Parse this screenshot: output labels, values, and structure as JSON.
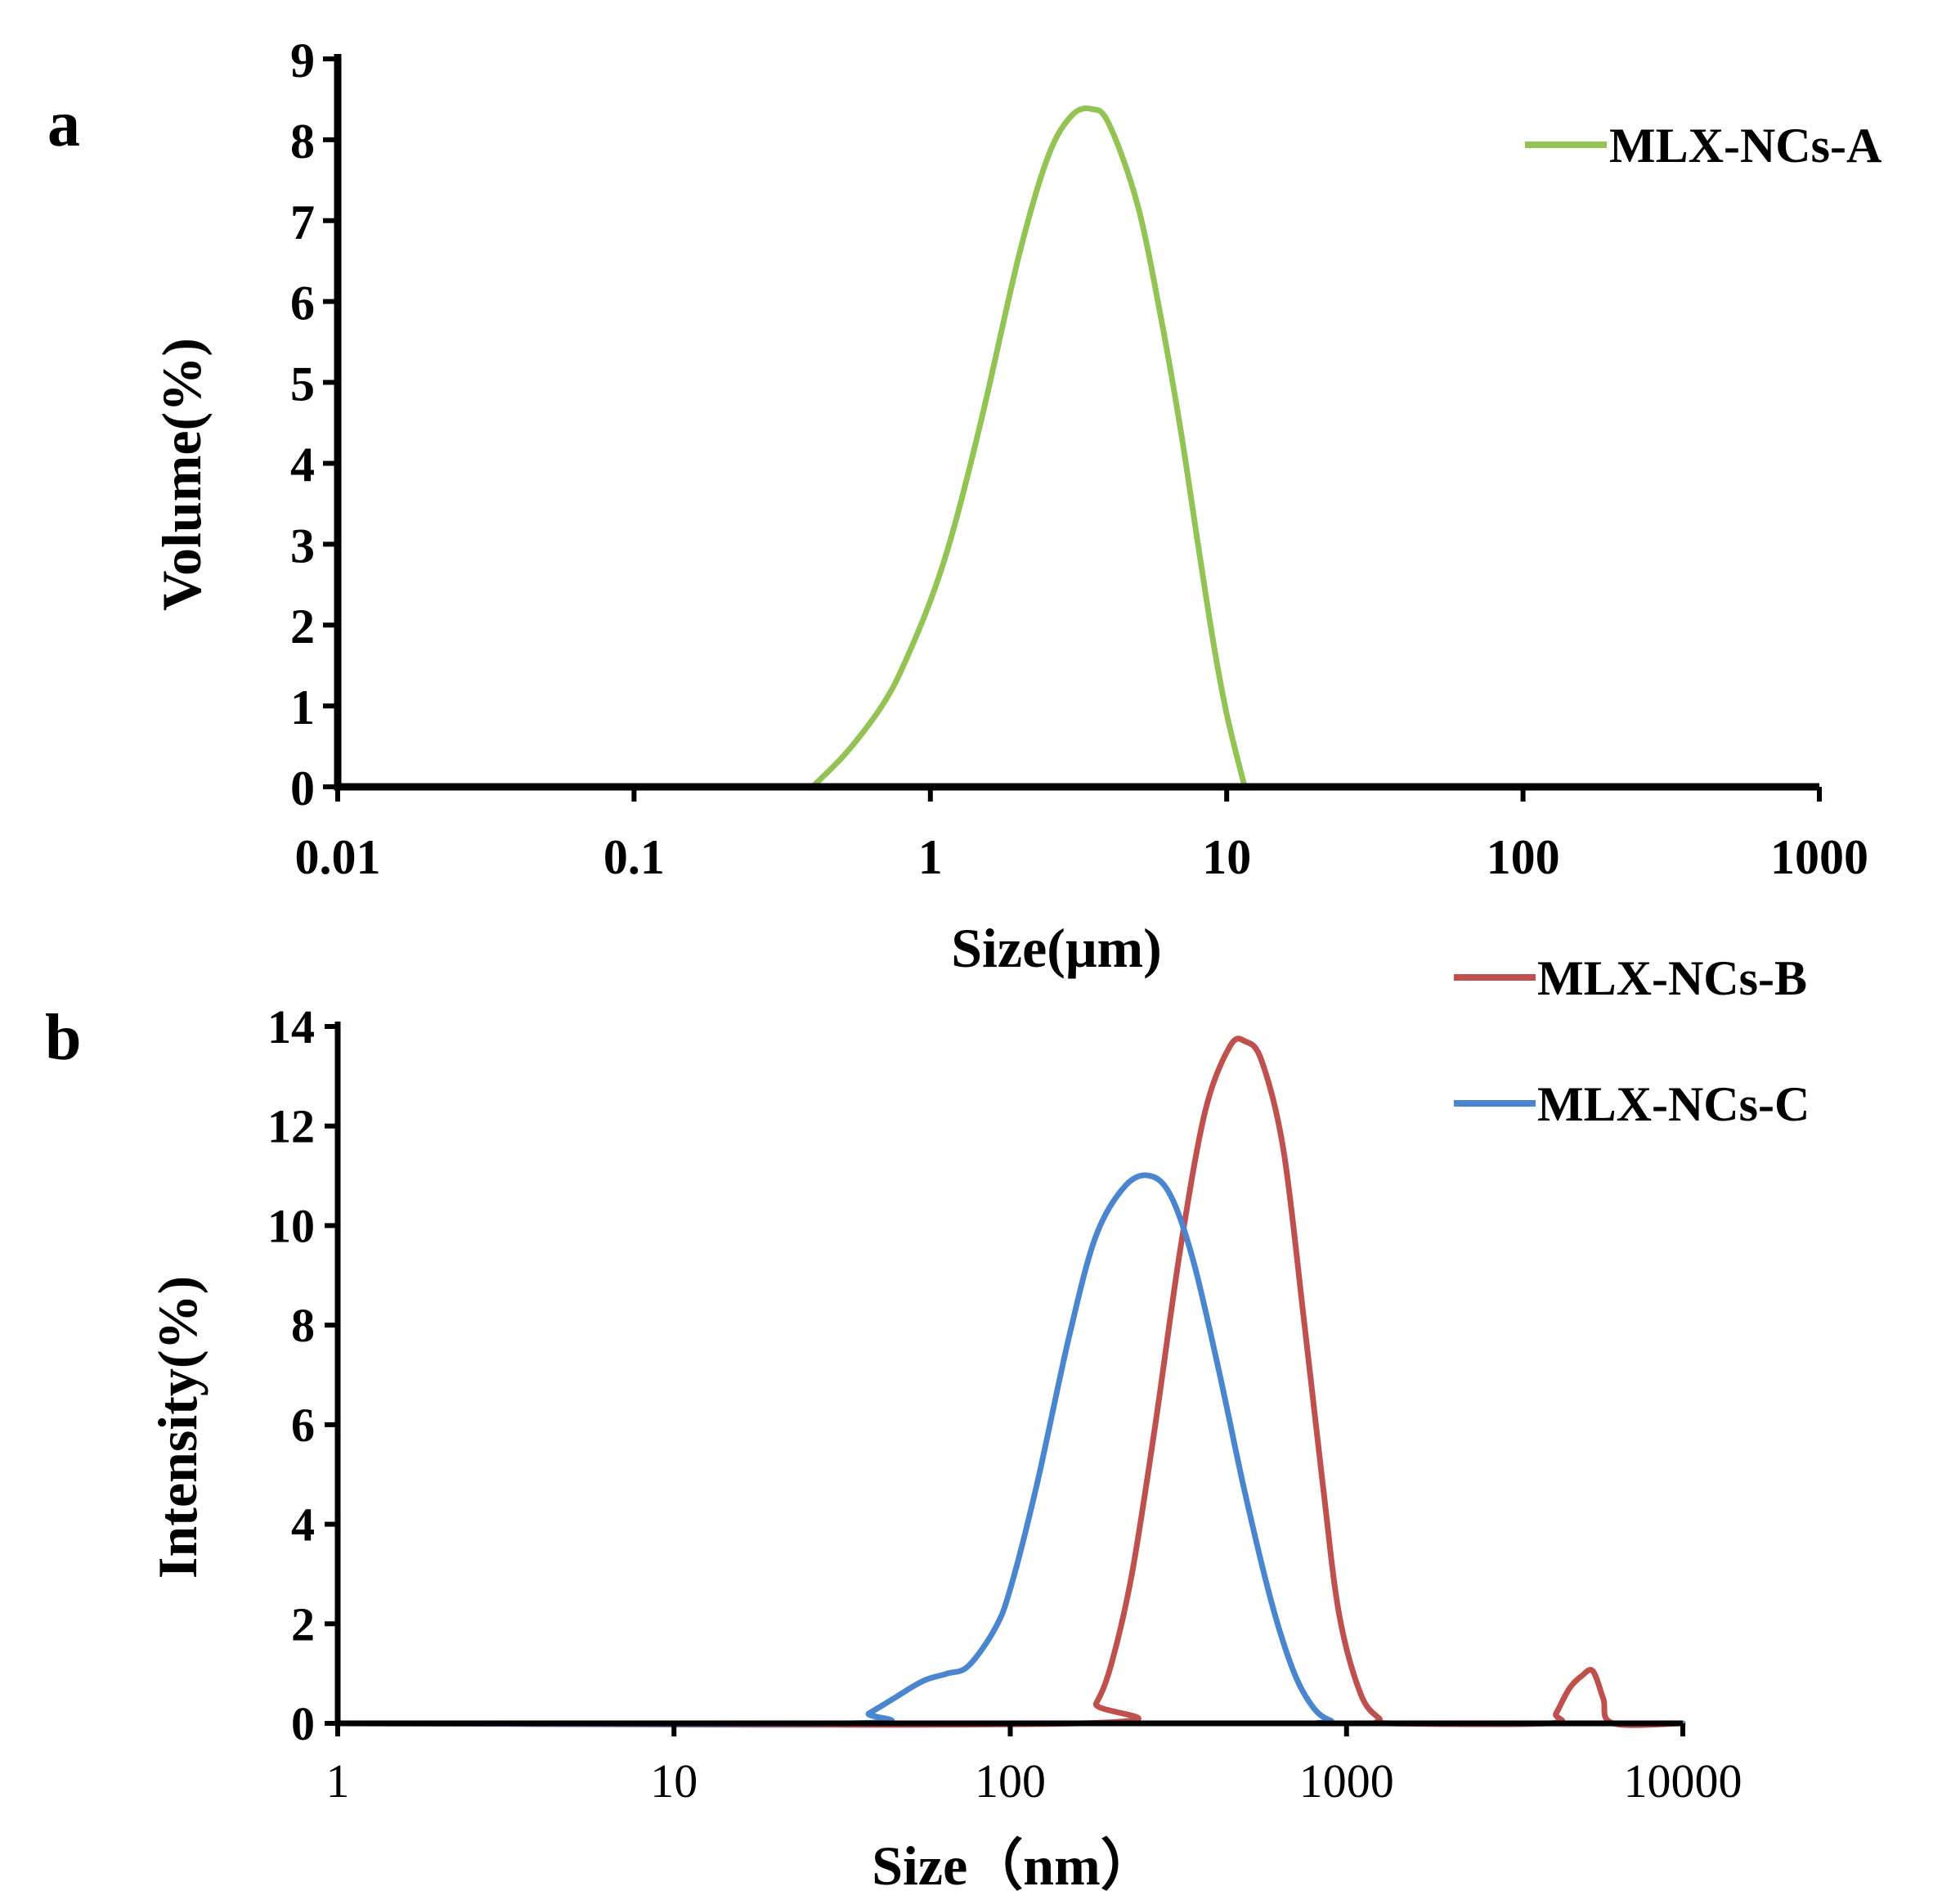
{
  "chart_data": [
    {
      "panel": "a",
      "type": "line",
      "xscale": "log",
      "xlabel": "Size(μm)",
      "ylabel": "Volume(%)",
      "xlim": [
        0.01,
        1000
      ],
      "ylim": [
        0,
        9
      ],
      "xticks": [
        "0.01",
        "0.1",
        "1",
        "10",
        "100",
        "1000"
      ],
      "yticks": [
        "0",
        "1",
        "2",
        "3",
        "4",
        "5",
        "6",
        "7",
        "8",
        "9"
      ],
      "legend_position": "top-right",
      "series": [
        {
          "name": "MLX-NCs-A",
          "color": "#92c353",
          "x": [
            0.4,
            0.5,
            0.6,
            0.7,
            0.8,
            1.0,
            1.2,
            1.5,
            2.0,
            2.5,
            3.0,
            3.5,
            4.0,
            5.0,
            6.0,
            7.0,
            8.0,
            9.0,
            10.0,
            11.5
          ],
          "y": [
            0.0,
            0.35,
            0.7,
            1.05,
            1.45,
            2.3,
            3.2,
            4.6,
            6.6,
            7.8,
            8.3,
            8.38,
            8.2,
            7.2,
            5.8,
            4.4,
            3.0,
            1.8,
            0.9,
            0.0
          ]
        }
      ]
    },
    {
      "panel": "b",
      "type": "line",
      "xscale": "log",
      "xlabel": "Size（nm）",
      "ylabel": "Intensity(%)",
      "xlim": [
        1,
        10000
      ],
      "ylim": [
        0,
        14
      ],
      "xticks": [
        "1",
        "10",
        "100",
        "1000",
        "10000"
      ],
      "yticks": [
        "0",
        "2",
        "4",
        "6",
        "8",
        "10",
        "12",
        "14"
      ],
      "legend_position": "top-right",
      "series": [
        {
          "name": "MLX-NCs-B",
          "color": "#c0504d",
          "x": [
            1,
            160,
            180,
            200,
            230,
            270,
            320,
            380,
            450,
            500,
            560,
            650,
            750,
            850,
            950,
            1100,
            1250,
            1350,
            4000,
            4200,
            4600,
            5000,
            5400,
            5800,
            6200,
            10000
          ],
          "y": [
            0.0,
            0.0,
            0.4,
            1.2,
            3.0,
            6.0,
            9.5,
            12.3,
            13.6,
            13.7,
            13.3,
            11.5,
            8.0,
            4.8,
            2.2,
            0.6,
            0.1,
            0.0,
            0.0,
            0.2,
            0.7,
            0.95,
            1.05,
            0.5,
            0.0,
            0.0
          ]
        },
        {
          "name": "MLX-NCs-C",
          "color": "#4a86d0",
          "x": [
            1,
            33,
            38,
            45,
            55,
            65,
            75,
            90,
            100,
            120,
            150,
            180,
            220,
            260,
            300,
            350,
            420,
            500,
            600,
            700,
            800,
            900,
            1000,
            10000
          ],
          "y": [
            0.0,
            0.0,
            0.2,
            0.5,
            0.85,
            1.0,
            1.15,
            1.9,
            2.7,
            4.8,
            7.8,
            9.8,
            10.8,
            11.0,
            10.6,
            9.3,
            7.0,
            4.6,
            2.4,
            1.0,
            0.3,
            0.05,
            0.0,
            0.0
          ]
        }
      ]
    }
  ]
}
